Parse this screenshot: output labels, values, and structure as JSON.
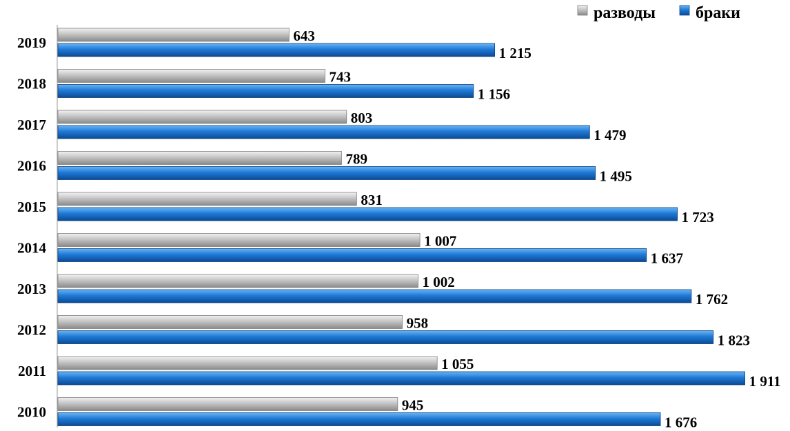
{
  "colors": {
    "divorces": "#b3b3b3",
    "marriages": "#1f7ad6",
    "axis": "#9a9a9a"
  },
  "chart_data": {
    "type": "bar",
    "orientation": "horizontal",
    "categories": [
      "2019",
      "2018",
      "2017",
      "2016",
      "2015",
      "2014",
      "2013",
      "2012",
      "2011",
      "2010"
    ],
    "series": [
      {
        "name": "разводы",
        "values": [
          643,
          743,
          803,
          789,
          831,
          1007,
          1002,
          958,
          1055,
          945
        ],
        "labels": [
          "643",
          "743",
          "803",
          "789",
          "831",
          "1 007",
          "1 002",
          "958",
          "1 055",
          "945"
        ]
      },
      {
        "name": "браки",
        "values": [
          1215,
          1156,
          1479,
          1495,
          1723,
          1637,
          1762,
          1823,
          1911,
          1676
        ],
        "labels": [
          "1 215",
          "1 156",
          "1 479",
          "1 495",
          "1 723",
          "1 637",
          "1 762",
          "1 823",
          "1 911",
          "1 676"
        ]
      }
    ],
    "title": "",
    "xlabel": "",
    "ylabel": "",
    "xlim": [
      0,
      2000
    ],
    "grid": false,
    "legend_position": "top-right"
  }
}
